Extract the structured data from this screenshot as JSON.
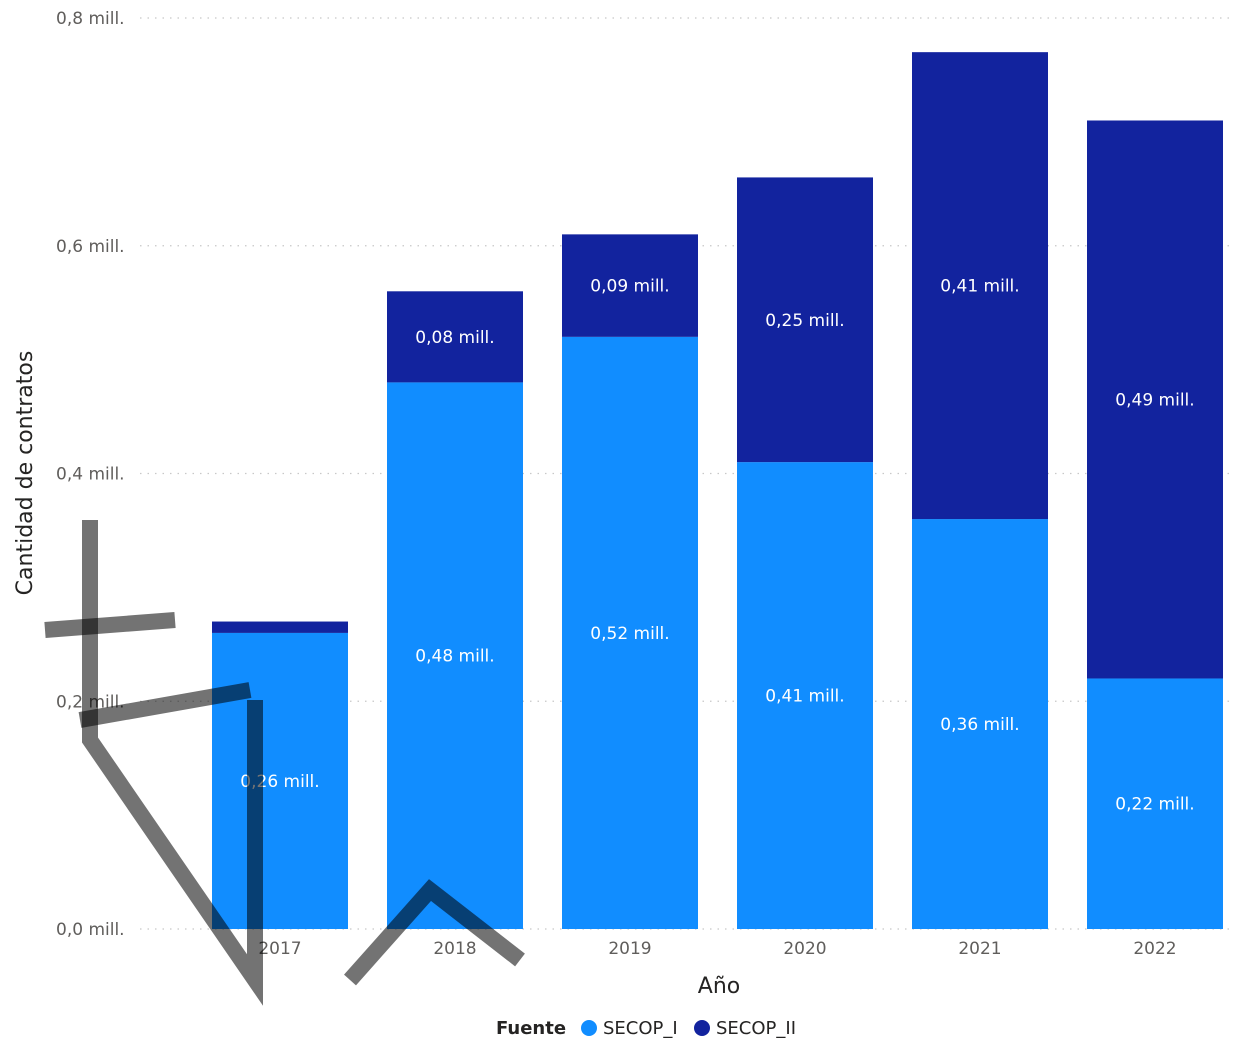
{
  "chart_data": {
    "type": "bar",
    "stacked": true,
    "categories": [
      "2017",
      "2018",
      "2019",
      "2020",
      "2021",
      "2022"
    ],
    "series": [
      {
        "name": "SECOP_I",
        "color": "#118dff",
        "values": [
          0.26,
          0.48,
          0.52,
          0.41,
          0.36,
          0.22
        ],
        "labels": [
          "0,26 mill.",
          "0,48 mill.",
          "0,52 mill.",
          "0,41 mill.",
          "0,36 mill.",
          "0,22 mill."
        ]
      },
      {
        "name": "SECOP_II",
        "color": "#12239e",
        "values": [
          0.01,
          0.08,
          0.09,
          0.25,
          0.41,
          0.49
        ],
        "labels": [
          "",
          "0,08 mill.",
          "0,09 mill.",
          "0,25 mill.",
          "0,41 mill.",
          "0,49 mill."
        ]
      }
    ],
    "xlabel": "Año",
    "ylabel": "Cantidad de contratos",
    "ylim": [
      0,
      0.8
    ],
    "yticks": [
      {
        "value": 0.0,
        "label": "0,0 mill."
      },
      {
        "value": 0.2,
        "label": "0,2 mill."
      },
      {
        "value": 0.4,
        "label": "0,4 mill."
      },
      {
        "value": 0.6,
        "label": "0,6 mill."
      },
      {
        "value": 0.8,
        "label": "0,8 mill."
      }
    ],
    "grid": true,
    "legend": {
      "title": "Fuente",
      "position": "bottom-center"
    }
  }
}
